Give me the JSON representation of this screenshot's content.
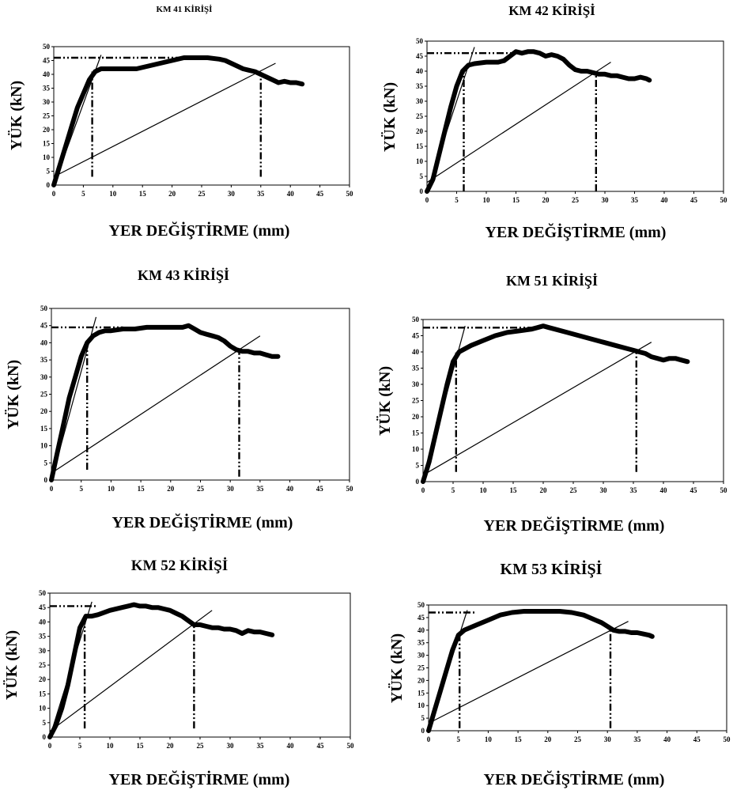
{
  "chart_data": [
    {
      "type": "line",
      "title": "KM 41 KİRİŞİ",
      "xlabel": "YER DEĞİŞTİRME  (mm)",
      "ylabel": "YÜK (kN)",
      "xlim": [
        0,
        50
      ],
      "ylim": [
        0,
        50
      ],
      "xticks": [
        "0",
        "5",
        "10",
        "15",
        "20",
        "25",
        "30",
        "35",
        "40",
        "45",
        "50"
      ],
      "yticks": [
        "0",
        "5",
        "10",
        "15",
        "20",
        "25",
        "30",
        "35",
        "40",
        "45",
        "50"
      ],
      "series": [
        {
          "role": "load-displacement",
          "x": [
            0,
            1,
            2,
            3,
            4,
            5,
            6,
            7,
            8,
            10,
            12,
            14,
            16,
            18,
            20,
            22,
            24,
            26,
            28,
            29,
            30,
            31,
            32,
            33,
            34,
            35,
            36,
            37,
            38,
            39,
            40,
            41,
            42
          ],
          "y": [
            0,
            7,
            14,
            21,
            28,
            33,
            38,
            41,
            42,
            42,
            42,
            42,
            43,
            44,
            45,
            46,
            46,
            46,
            45.5,
            45,
            44,
            43,
            42,
            41.5,
            41,
            40,
            39,
            38,
            37,
            37.5,
            37,
            37,
            36.5
          ]
        },
        {
          "role": "initial-stiffness",
          "x": [
            0,
            8
          ],
          "y": [
            0,
            47
          ]
        },
        {
          "role": "secant",
          "x": [
            0,
            37.5
          ],
          "y": [
            3,
            44
          ]
        },
        {
          "role": "peak-load",
          "x": [
            0,
            22
          ],
          "y": [
            46,
            46
          ]
        },
        {
          "role": "yield-displacement",
          "x": [
            6.5,
            6.5
          ],
          "y": [
            3,
            41
          ]
        },
        {
          "role": "ultimate-displacement",
          "x": [
            35,
            35
          ],
          "y": [
            3,
            40
          ]
        }
      ]
    },
    {
      "type": "line",
      "title": "KM 42 KİRİŞİ",
      "xlabel": "YER DEĞİŞTİRME  (mm)",
      "ylabel": "YÜK (kN)",
      "xlim": [
        0,
        50
      ],
      "ylim": [
        0,
        50
      ],
      "xticks": [
        "0",
        "5",
        "10",
        "15",
        "20",
        "25",
        "30",
        "35",
        "40",
        "45",
        "50"
      ],
      "yticks": [
        "0",
        "5",
        "10",
        "15",
        "20",
        "25",
        "30",
        "35",
        "40",
        "45",
        "50"
      ],
      "series": [
        {
          "role": "load-displacement",
          "x": [
            0,
            1,
            2,
            3,
            4,
            5,
            6,
            7,
            8,
            10,
            12,
            13,
            14,
            15,
            16,
            17,
            18,
            19,
            20,
            21,
            22,
            23,
            24,
            25,
            26,
            27,
            28,
            29,
            30,
            31,
            32,
            33,
            34,
            35,
            36,
            37,
            37.5
          ],
          "y": [
            0,
            4,
            12,
            20,
            28,
            35,
            40,
            42,
            42.5,
            43,
            43,
            43.5,
            45,
            46.5,
            46,
            46.5,
            46.5,
            46,
            45,
            45.5,
            45,
            44,
            42,
            40.5,
            40,
            40,
            39.5,
            39,
            39,
            38.5,
            38.5,
            38,
            37.5,
            37.5,
            38,
            37.5,
            37
          ]
        },
        {
          "role": "initial-stiffness",
          "x": [
            0,
            8
          ],
          "y": [
            0,
            48
          ]
        },
        {
          "role": "secant",
          "x": [
            0,
            31
          ],
          "y": [
            3,
            43
          ]
        },
        {
          "role": "peak-load",
          "x": [
            0,
            16
          ],
          "y": [
            46,
            46
          ]
        },
        {
          "role": "yield-displacement",
          "x": [
            6.2,
            6.2
          ],
          "y": [
            0,
            41
          ]
        },
        {
          "role": "ultimate-displacement",
          "x": [
            28.5,
            28.5
          ],
          "y": [
            0,
            40
          ]
        }
      ]
    },
    {
      "type": "line",
      "title": "KM 43 KİRİŞİ",
      "xlabel": "YER DEĞİŞTİRME  (mm)",
      "ylabel": "YÜK (kN)",
      "xlim": [
        0,
        50
      ],
      "ylim": [
        0,
        50
      ],
      "xticks": [
        "0",
        "5",
        "10",
        "15",
        "20",
        "25",
        "30",
        "35",
        "40",
        "45",
        "50"
      ],
      "yticks": [
        "0",
        "5",
        "10",
        "15",
        "20",
        "25",
        "30",
        "35",
        "40",
        "45",
        "50"
      ],
      "series": [
        {
          "role": "load-displacement",
          "x": [
            0,
            1,
            2,
            3,
            4,
            5,
            6,
            7,
            8,
            9,
            10,
            12,
            14,
            16,
            18,
            20,
            22,
            23,
            24,
            25,
            26,
            27,
            28,
            29,
            30,
            31,
            32,
            33,
            34,
            35,
            36,
            37,
            38
          ],
          "y": [
            0,
            8,
            16,
            24,
            30,
            36,
            40,
            42,
            43,
            43.5,
            43.5,
            44,
            44,
            44.5,
            44.5,
            44.5,
            44.5,
            45,
            44,
            43,
            42.5,
            42,
            41.5,
            40.5,
            39,
            38,
            37.5,
            37.5,
            37,
            37,
            36.5,
            36,
            36
          ]
        },
        {
          "role": "initial-stiffness",
          "x": [
            0,
            7.5
          ],
          "y": [
            0,
            47.5
          ]
        },
        {
          "role": "secant",
          "x": [
            0,
            35
          ],
          "y": [
            2,
            42
          ]
        },
        {
          "role": "peak-load",
          "x": [
            0,
            12
          ],
          "y": [
            44.5,
            44.5
          ]
        },
        {
          "role": "yield-displacement",
          "x": [
            6,
            6
          ],
          "y": [
            3,
            41
          ]
        },
        {
          "role": "ultimate-displacement",
          "x": [
            31.5,
            31.5
          ],
          "y": [
            1,
            38
          ]
        }
      ]
    },
    {
      "type": "line",
      "title": "KM 51 KİRİŞİ",
      "xlabel": "YER DEĞİŞTİRME  (mm)",
      "ylabel": "YÜK (kN)",
      "xlim": [
        0,
        50
      ],
      "ylim": [
        0,
        50
      ],
      "xticks": [
        "0",
        "5",
        "10",
        "15",
        "20",
        "25",
        "30",
        "35",
        "40",
        "45",
        "50"
      ],
      "yticks": [
        "0",
        "5",
        "10",
        "15",
        "20",
        "25",
        "30",
        "35",
        "40",
        "45",
        "50"
      ],
      "series": [
        {
          "role": "load-displacement",
          "x": [
            0,
            1,
            2,
            3,
            4,
            5,
            6,
            8,
            10,
            12,
            14,
            16,
            18,
            19,
            20,
            21,
            22,
            24,
            26,
            28,
            30,
            32,
            34,
            35,
            36,
            37,
            38,
            39,
            40,
            41,
            42,
            43,
            44
          ],
          "y": [
            0,
            6,
            14,
            22,
            30,
            37,
            40,
            42,
            43.5,
            45,
            46,
            46.5,
            47,
            47.5,
            48,
            47.5,
            47,
            46,
            45,
            44,
            43,
            42,
            41,
            40.5,
            40,
            39.5,
            38.5,
            38,
            37.5,
            38,
            38,
            37.5,
            37
          ]
        },
        {
          "role": "initial-stiffness",
          "x": [
            0,
            7
          ],
          "y": [
            0,
            48
          ]
        },
        {
          "role": "secant",
          "x": [
            0,
            38
          ],
          "y": [
            2,
            43
          ]
        },
        {
          "role": "peak-load",
          "x": [
            0,
            19
          ],
          "y": [
            47.5,
            47.5
          ]
        },
        {
          "role": "yield-displacement",
          "x": [
            5.5,
            5.5
          ],
          "y": [
            3,
            40
          ]
        },
        {
          "role": "ultimate-displacement",
          "x": [
            35.5,
            35.5
          ],
          "y": [
            3,
            40.5
          ]
        }
      ]
    },
    {
      "type": "line",
      "title": "KM 52 KİRİŞİ",
      "xlabel": "YER DEĞİŞTİRME  (mm)",
      "ylabel": "YÜK (kN)",
      "xlim": [
        0,
        50
      ],
      "ylim": [
        0,
        50
      ],
      "xticks": [
        "0",
        "5",
        "10",
        "15",
        "20",
        "25",
        "30",
        "35",
        "40",
        "45",
        "50"
      ],
      "yticks": [
        "0",
        "5",
        "10",
        "15",
        "20",
        "25",
        "30",
        "35",
        "40",
        "45",
        "50"
      ],
      "series": [
        {
          "role": "load-displacement",
          "x": [
            0,
            1,
            2,
            3,
            4,
            5,
            6,
            7,
            8,
            10,
            12,
            13,
            14,
            15,
            16,
            17,
            18,
            19,
            20,
            21,
            22,
            23,
            24,
            25,
            26,
            27,
            28,
            29,
            30,
            31,
            32,
            33,
            34,
            35,
            36,
            37
          ],
          "y": [
            0,
            4,
            10,
            18,
            28,
            38,
            42,
            42,
            42.5,
            44,
            45,
            45.5,
            46,
            45.5,
            45.5,
            45,
            45,
            44.5,
            44,
            43,
            42,
            40.5,
            39,
            39,
            38.5,
            38,
            38,
            37.5,
            37.5,
            37,
            36,
            37,
            36.5,
            36.5,
            36,
            35.5
          ]
        },
        {
          "role": "initial-stiffness",
          "x": [
            0,
            7
          ],
          "y": [
            0,
            47
          ]
        },
        {
          "role": "secant",
          "x": [
            0,
            27
          ],
          "y": [
            2,
            44
          ]
        },
        {
          "role": "peak-load",
          "x": [
            0,
            8
          ],
          "y": [
            45.5,
            45.5
          ]
        },
        {
          "role": "yield-displacement",
          "x": [
            5.8,
            5.8
          ],
          "y": [
            3,
            41
          ]
        },
        {
          "role": "ultimate-displacement",
          "x": [
            24,
            24
          ],
          "y": [
            3,
            39
          ]
        }
      ]
    },
    {
      "type": "line",
      "title": "KM 53 KİRİŞİ",
      "xlabel": "YER DEĞİŞTİRME (mm)",
      "ylabel": "YÜK (kN)",
      "xlim": [
        0,
        50
      ],
      "ylim": [
        0,
        50
      ],
      "xticks": [
        "0",
        "5",
        "10",
        "15",
        "20",
        "25",
        "30",
        "35",
        "40",
        "45",
        "50"
      ],
      "yticks": [
        "0",
        "5",
        "10",
        "15",
        "20",
        "25",
        "30",
        "35",
        "40",
        "45",
        "50"
      ],
      "series": [
        {
          "role": "load-displacement",
          "x": [
            0,
            1,
            2,
            3,
            4,
            5,
            6,
            8,
            10,
            12,
            14,
            16,
            18,
            20,
            22,
            24,
            26,
            27,
            28,
            29,
            30,
            31,
            32,
            33,
            34,
            35,
            36,
            37,
            37.5
          ],
          "y": [
            0,
            8,
            16,
            24,
            32,
            38,
            40,
            42,
            44,
            46,
            47,
            47.5,
            47.5,
            47.5,
            47.5,
            47,
            46,
            45,
            44,
            43,
            41.5,
            40,
            39.5,
            39.5,
            39,
            39,
            38.5,
            38,
            37.5
          ]
        },
        {
          "role": "initial-stiffness",
          "x": [
            0,
            6.5
          ],
          "y": [
            0,
            48
          ]
        },
        {
          "role": "secant",
          "x": [
            0,
            33.5
          ],
          "y": [
            3,
            43.5
          ]
        },
        {
          "role": "peak-load",
          "x": [
            0,
            8
          ],
          "y": [
            47,
            47
          ]
        },
        {
          "role": "yield-displacement",
          "x": [
            5.2,
            5.2
          ],
          "y": [
            1,
            39
          ]
        },
        {
          "role": "ultimate-displacement",
          "x": [
            30.5,
            30.5
          ],
          "y": [
            1,
            40
          ]
        }
      ]
    }
  ]
}
